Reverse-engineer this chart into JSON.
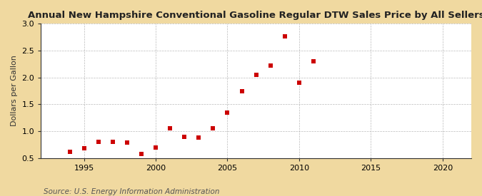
{
  "title": "Annual New Hampshire Conventional Gasoline Regular DTW Sales Price by All Sellers",
  "ylabel": "Dollars per Gallon",
  "source": "Source: U.S. Energy Information Administration",
  "fig_background_color": "#f0d9a0",
  "plot_background_color": "#ffffff",
  "marker_color": "#cc0000",
  "years": [
    1994,
    1995,
    1996,
    1997,
    1998,
    1999,
    2000,
    2001,
    2002,
    2003,
    2004,
    2005,
    2006,
    2007,
    2008,
    2009,
    2010,
    2011
  ],
  "values": [
    0.62,
    0.68,
    0.8,
    0.8,
    0.79,
    0.58,
    0.7,
    1.05,
    0.9,
    0.88,
    1.05,
    1.35,
    1.75,
    2.05,
    2.22,
    2.77,
    1.9,
    2.3
  ],
  "xlim": [
    1992,
    2022
  ],
  "ylim": [
    0.5,
    3.0
  ],
  "xticks": [
    1995,
    2000,
    2005,
    2010,
    2015,
    2020
  ],
  "yticks": [
    0.5,
    1.0,
    1.5,
    2.0,
    2.5,
    3.0
  ],
  "title_fontsize": 9.5,
  "label_fontsize": 8,
  "tick_fontsize": 8,
  "source_fontsize": 7.5,
  "grid_color": "#bbbbbb",
  "spine_color": "#333333"
}
